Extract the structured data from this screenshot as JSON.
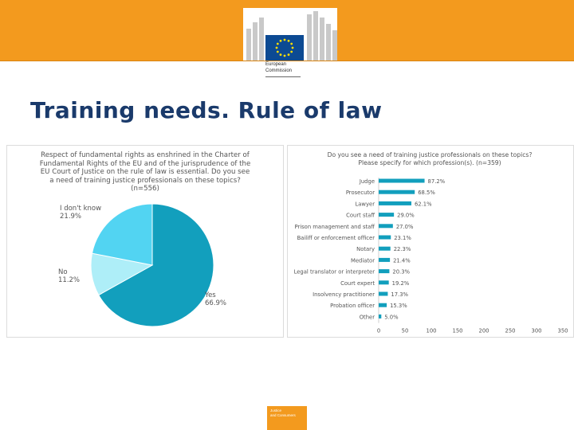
{
  "header": {
    "logo_line1": "European",
    "logo_line2": "Commission",
    "brand_color": "#f39a1e"
  },
  "title": "Training needs. Rule of law",
  "chart_data": [
    {
      "type": "pie",
      "question_lines": [
        "Respect of fundamental rights as enshrined in the Charter of",
        "Fundamental Rights of the EU and of the jurisprudence of the",
        "EU Court of Justice on the rule of law is essential. Do you see",
        "a need of training justice professionals on these topics?",
        "(n=556)"
      ],
      "slices": [
        {
          "label": "Yes",
          "value": 66.9,
          "display": "66.9%",
          "color": "#129fbd"
        },
        {
          "label": "No",
          "value": 11.2,
          "display": "11.2%",
          "color": "#aeeef8"
        },
        {
          "label": "I don't know",
          "value": 21.9,
          "display": "21.9%",
          "color": "#52d4f2"
        }
      ]
    },
    {
      "type": "bar",
      "orientation": "horizontal",
      "question_lines": [
        "Do you see a need of training justice professionals on these topics?",
        "Please specify for which profession(s). (n=359)"
      ],
      "categories": [
        "Judge",
        "Prosecutor",
        "Lawyer",
        "Court staff",
        "Prison management and staff",
        "Bailiff or enforcement officer",
        "Notary",
        "Mediator",
        "Legal translator or interpreter",
        "Court expert",
        "Insolvency practitioner",
        "Probation officer",
        "Other"
      ],
      "values": [
        87.2,
        68.5,
        62.1,
        29.0,
        27.0,
        23.1,
        22.3,
        21.4,
        20.3,
        19.2,
        17.3,
        15.3,
        5.0
      ],
      "value_labels": [
        "87.2%",
        "68.5%",
        "62.1%",
        "29.0%",
        "27.0%",
        "23.1%",
        "22.3%",
        "21.4%",
        "20.3%",
        "19.2%",
        "17.3%",
        "15.3%",
        "5.0%"
      ],
      "xticks": [
        "0",
        "50",
        "100",
        "150",
        "200",
        "250",
        "300",
        "350"
      ],
      "xlim": [
        0,
        350
      ],
      "bar_color": "#129fbd"
    }
  ],
  "footer": {
    "line1": "Justice",
    "line2": "and Consumers"
  }
}
